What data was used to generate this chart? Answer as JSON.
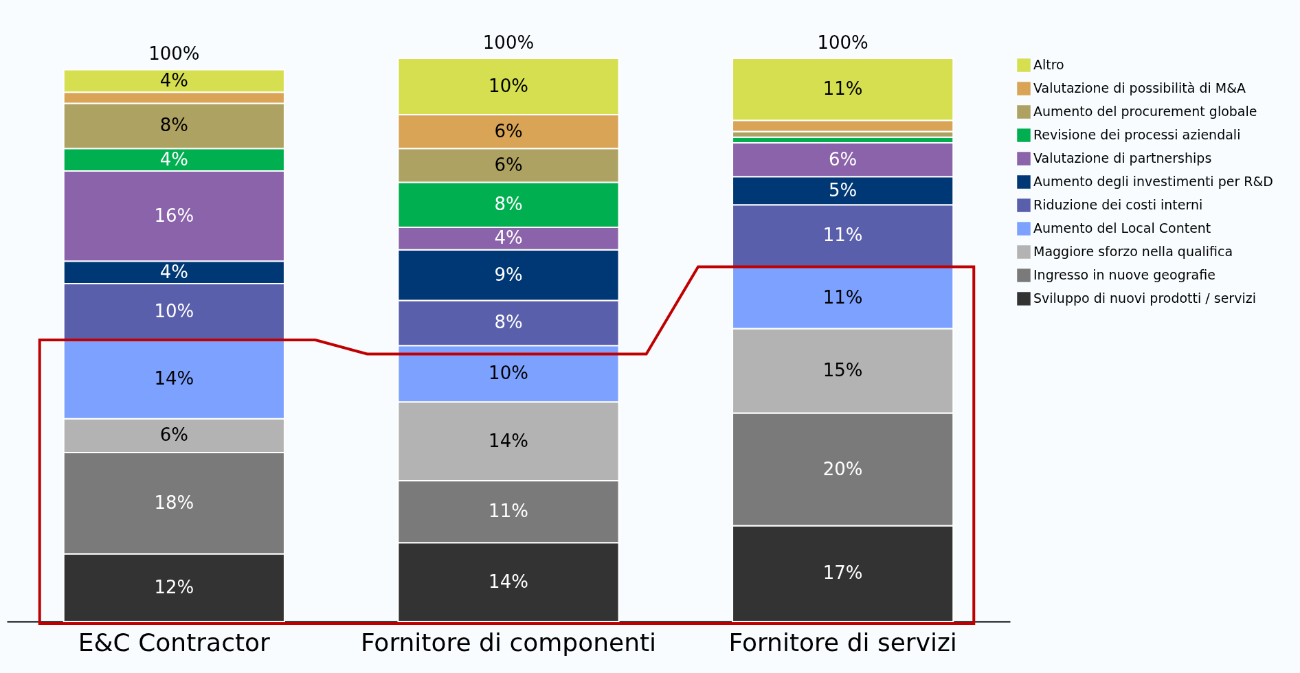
{
  "chart_data": {
    "type": "bar",
    "stacked": true,
    "legend": "right",
    "categories": [
      "E&C Contractor",
      "Fornitore di componenti",
      "Fornitore di servizi"
    ],
    "totals": [
      "100%",
      "100%",
      "100%"
    ],
    "series": [
      {
        "name": "Sviluppo di nuovi prodotti / servizi",
        "color": "#333333",
        "values": [
          12,
          14,
          17
        ],
        "value_labels": [
          "12%",
          "14%",
          "17%"
        ]
      },
      {
        "name": "Ingresso in nuove geografie",
        "color": "#7a7a7a",
        "values": [
          18,
          11,
          20
        ],
        "value_labels": [
          "18%",
          "11%",
          "20%"
        ]
      },
      {
        "name": "Maggiore sforzo nella qualifica",
        "color": "#b3b3b3",
        "values": [
          6,
          14,
          15
        ],
        "value_labels": [
          "6%",
          "14%",
          "15%"
        ]
      },
      {
        "name": "Aumento del Local Content",
        "color": "#7da1ff",
        "values": [
          14,
          10,
          11
        ],
        "value_labels": [
          "14%",
          "10%",
          "11%"
        ]
      },
      {
        "name": "Riduzione dei costi interni",
        "color": "#5a5fab",
        "values": [
          10,
          8,
          11
        ],
        "value_labels": [
          "10%",
          "8%",
          "11%"
        ]
      },
      {
        "name": "Aumento degli investimenti per R&D",
        "color": "#003875",
        "values": [
          4,
          9,
          5
        ],
        "value_labels": [
          "4%",
          "9%",
          "5%"
        ]
      },
      {
        "name": "Valutazione di partnerships",
        "color": "#8a63ab",
        "values": [
          16,
          4,
          6
        ],
        "value_labels": [
          "16%",
          "4%",
          "6%"
        ]
      },
      {
        "name": "Revisione dei processi aziendali",
        "color": "#00b050",
        "values": [
          4,
          8,
          1
        ],
        "value_labels": [
          "4%",
          "8%",
          null
        ]
      },
      {
        "name": "Aumento del procurement globale",
        "color": "#aea263",
        "values": [
          8,
          6,
          1
        ],
        "value_labels": [
          "8%",
          "6%",
          null
        ]
      },
      {
        "name": "Valutazione di possibilità di M&A",
        "color": "#d9a455",
        "values": [
          2,
          6,
          2
        ],
        "value_labels": [
          null,
          "6%",
          null
        ]
      },
      {
        "name": "Altro",
        "color": "#d6df4f",
        "values": [
          4,
          10,
          11
        ],
        "value_labels": [
          "4%",
          "10%",
          "11%"
        ]
      }
    ]
  }
}
